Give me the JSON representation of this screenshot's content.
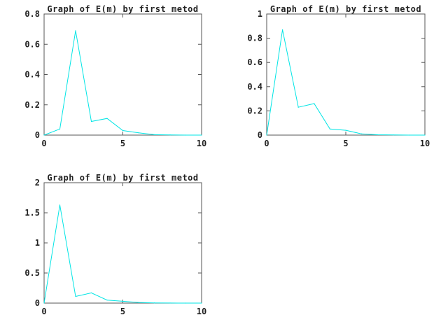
{
  "colors": {
    "series": "#00e5e5",
    "axis": "#555555",
    "text": "#222222"
  },
  "chart_data": [
    {
      "type": "line",
      "title": "Graph of E(m) by first metod",
      "xlim": [
        0,
        10
      ],
      "ylim": [
        0,
        0.8
      ],
      "xticks": [
        0,
        5,
        10
      ],
      "xtick_labels": [
        "0",
        "5",
        "10"
      ],
      "yticks": [
        0,
        0.2,
        0.4,
        0.6,
        0.8
      ],
      "ytick_labels": [
        "0",
        "0.2",
        "0.4",
        "0.6",
        "0.8"
      ],
      "grid": false,
      "series": [
        {
          "x": [
            0,
            1,
            2,
            3,
            4,
            5,
            6,
            7,
            8,
            9,
            10
          ],
          "y": [
            0.0,
            0.04,
            0.69,
            0.09,
            0.11,
            0.03,
            0.015,
            0.003,
            0.001,
            0.0,
            0.0
          ]
        }
      ]
    },
    {
      "type": "line",
      "title": "Graph of E(m) by first metod",
      "xlim": [
        0,
        10
      ],
      "ylim": [
        0,
        1
      ],
      "xticks": [
        0,
        5,
        10
      ],
      "xtick_labels": [
        "0",
        "5",
        "10"
      ],
      "yticks": [
        0,
        0.2,
        0.4,
        0.6,
        0.8,
        1
      ],
      "ytick_labels": [
        "0",
        "0.2",
        "0.4",
        "0.6",
        "0.8",
        "1"
      ],
      "grid": false,
      "series": [
        {
          "x": [
            0,
            1,
            2,
            3,
            4,
            5,
            6,
            7,
            8,
            9,
            10
          ],
          "y": [
            0.0,
            0.87,
            0.23,
            0.26,
            0.05,
            0.04,
            0.01,
            0.003,
            0.001,
            0.0,
            0.0
          ]
        }
      ]
    },
    {
      "type": "line",
      "title": "Graph of E(m) by first metod",
      "xlim": [
        0,
        10
      ],
      "ylim": [
        0,
        2
      ],
      "xticks": [
        0,
        5,
        10
      ],
      "xtick_labels": [
        "0",
        "5",
        "10"
      ],
      "yticks": [
        0,
        0.5,
        1,
        1.5,
        2
      ],
      "ytick_labels": [
        "0",
        "0.5",
        "1",
        "1.5",
        "2"
      ],
      "grid": false,
      "series": [
        {
          "x": [
            0,
            1,
            2,
            3,
            4,
            5,
            6,
            7,
            8,
            9,
            10
          ],
          "y": [
            0.0,
            1.63,
            0.11,
            0.17,
            0.05,
            0.03,
            0.01,
            0.003,
            0.001,
            0.0,
            0.0
          ]
        }
      ]
    }
  ]
}
